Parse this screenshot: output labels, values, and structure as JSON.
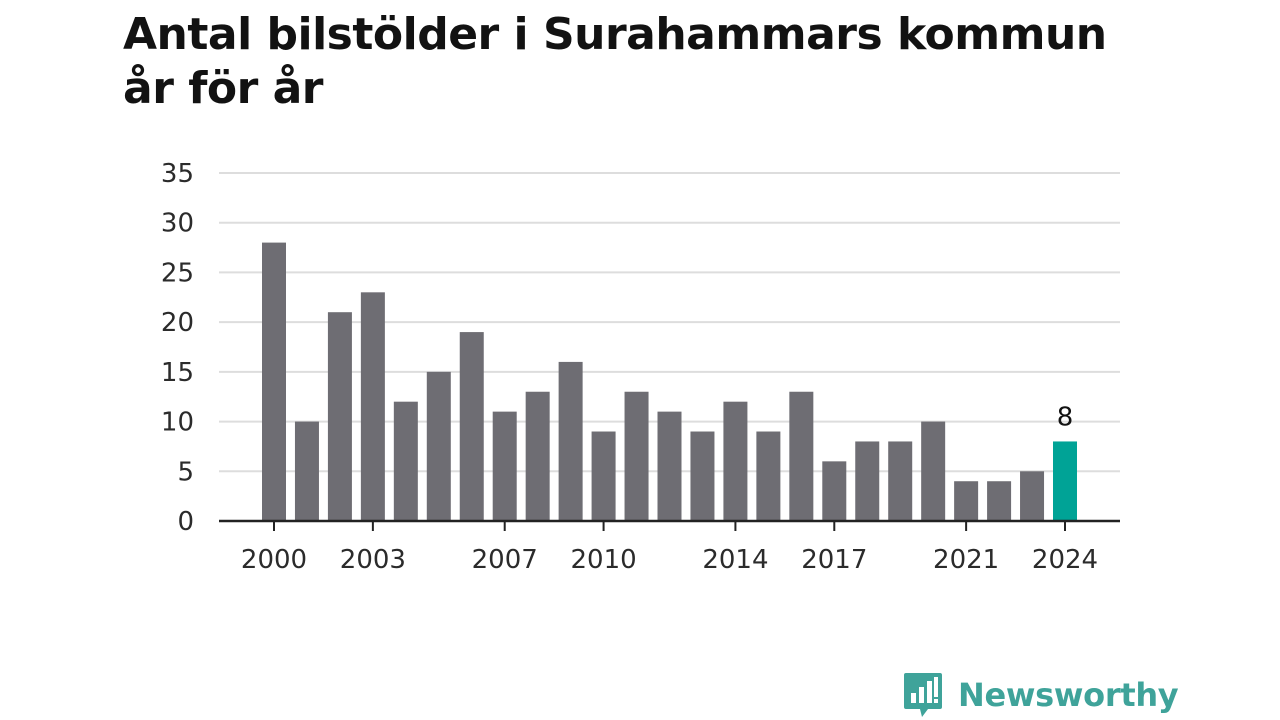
{
  "title": "Antal bilstölder i Surahammars kommun år för år",
  "chart_data": {
    "type": "bar",
    "title": "Antal bilstölder i Surahammars kommun år för år",
    "xlabel": "",
    "ylabel": "",
    "categories": [
      2000,
      2001,
      2002,
      2003,
      2004,
      2005,
      2006,
      2007,
      2008,
      2009,
      2010,
      2011,
      2012,
      2013,
      2014,
      2015,
      2016,
      2017,
      2018,
      2019,
      2020,
      2021,
      2022,
      2023,
      2024
    ],
    "values": [
      28,
      10,
      21,
      23,
      12,
      15,
      19,
      11,
      13,
      16,
      9,
      13,
      11,
      9,
      12,
      9,
      13,
      6,
      8,
      8,
      10,
      4,
      4,
      5,
      8
    ],
    "x_tick_labels": [
      "2000",
      "2003",
      "2007",
      "2010",
      "2014",
      "2017",
      "2021",
      "2024"
    ],
    "y_ticks": [
      0,
      5,
      10,
      15,
      20,
      25,
      30,
      35
    ],
    "ylim": [
      0,
      35
    ],
    "grid": true,
    "highlight": {
      "category": 2024,
      "value_label": "8",
      "color": "#00a396"
    },
    "bar_color": "#6e6d73",
    "grid_color": "#dddddd",
    "axis_color": "#222222"
  },
  "logo": {
    "text": "Newsworthy",
    "icon": "newsworthy-chart-bubble-icon",
    "color": "#3fa39a"
  }
}
